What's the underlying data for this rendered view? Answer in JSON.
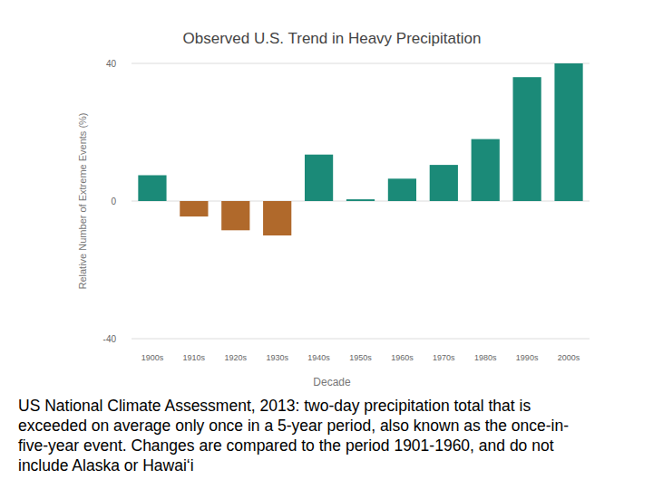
{
  "chart_data": {
    "type": "bar",
    "title": "Observed U.S. Trend in Heavy Precipitation",
    "x_label": "Decade",
    "y_label": "Relative Number of Extreme Events (%)",
    "categories": [
      "1900s",
      "1910s",
      "1920s",
      "1930s",
      "1940s",
      "1950s",
      "1960s",
      "1970s",
      "1980s",
      "1990s",
      "2000s"
    ],
    "values": [
      7.5,
      -4.5,
      -8.5,
      -10,
      13.5,
      0.5,
      6.5,
      10.5,
      18,
      36,
      40
    ],
    "colors": [
      "#1b8a78",
      "#b0692b",
      "#b0692b",
      "#b0692b",
      "#1b8a78",
      "#1b8a78",
      "#1b8a78",
      "#1b8a78",
      "#1b8a78",
      "#1b8a78",
      "#1b8a78"
    ],
    "ylim": [
      -40,
      40
    ],
    "yticks": [
      -40,
      0,
      40
    ],
    "grid": true,
    "caption": [
      "US National Climate Assessment, 2013: two-day precipitation total that is",
      "exceeded on average only once in a 5-year period, also known as the once-in-",
      "five-year event. Changes are compared to the period 1901-1960, and do not",
      "include Alaska or Hawai‘i"
    ]
  }
}
